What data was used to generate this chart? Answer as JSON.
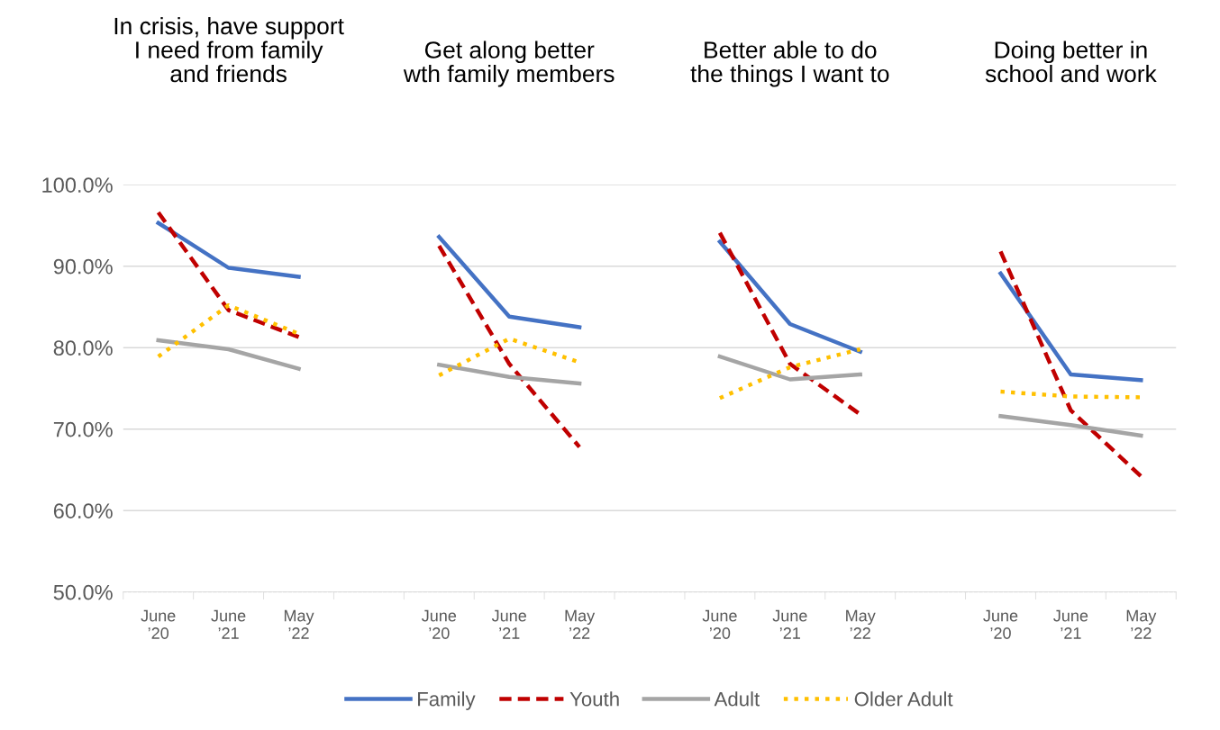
{
  "chart_data": {
    "type": "line",
    "categories": [
      "June\n’20",
      "June\n’21",
      "May\n’22",
      null,
      "June\n’20",
      "June\n’21",
      "May\n’22",
      null,
      "June\n’20",
      "June\n’21",
      "May\n’22",
      null,
      "June\n’20",
      "June\n’21",
      "May\n’22"
    ],
    "series": [
      {
        "name": "Family",
        "color": "#4472c4",
        "line_style": "solid",
        "values": [
          95.3,
          89.8,
          88.7,
          null,
          93.6,
          83.8,
          82.5,
          null,
          93.0,
          82.9,
          79.5,
          null,
          89.1,
          76.7,
          76.0
        ]
      },
      {
        "name": "Youth",
        "color": "#c00000",
        "line_style": "dashed",
        "values": [
          96.6,
          84.6,
          81.3,
          null,
          92.5,
          78.0,
          67.8,
          null,
          94.1,
          78.0,
          71.8,
          null,
          91.8,
          72.3,
          64.2
        ]
      },
      {
        "name": "Adult",
        "color": "#a5a5a5",
        "line_style": "solid",
        "values": [
          80.9,
          79.8,
          77.4,
          null,
          77.9,
          76.4,
          75.6,
          null,
          78.9,
          76.1,
          76.7,
          null,
          71.6,
          70.5,
          69.2
        ]
      },
      {
        "name": "Older Adult",
        "color": "#ffc000",
        "line_style": "dotted",
        "values": [
          78.9,
          85.2,
          81.7,
          null,
          76.6,
          81.1,
          78.2,
          null,
          73.8,
          77.6,
          79.8,
          null,
          74.6,
          74.0,
          73.9
        ]
      }
    ],
    "annotations": [
      "In crisis, have support\nI need from family\nand friends",
      "Get along better\nwth family members",
      "Better able to do\nthe things I want to",
      "Doing better in\nschool and work"
    ],
    "ylim": [
      50,
      100
    ],
    "yticks": [
      {
        "value": 50,
        "label": "50.0%"
      },
      {
        "value": 60,
        "label": "60.0%"
      },
      {
        "value": 70,
        "label": "70.0%"
      },
      {
        "value": 80,
        "label": "80.0%"
      },
      {
        "value": 90,
        "label": "90.0%"
      },
      {
        "value": 100,
        "label": "100.0%"
      }
    ],
    "grid": "y",
    "legend": "bottom",
    "marker": "none"
  }
}
